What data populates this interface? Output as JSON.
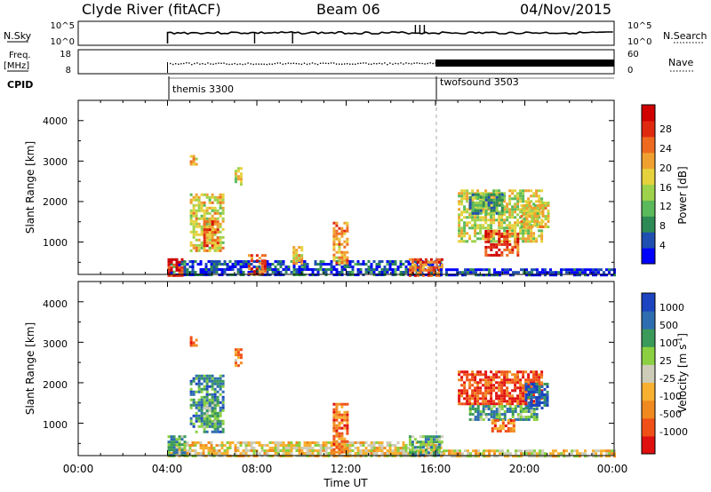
{
  "header": {
    "station": "Clyde River (fitACF)",
    "beam": "Beam 06",
    "date": "04/Nov/2015"
  },
  "top_panels": {
    "nsky_label": "N.Sky",
    "nsky_ticks": [
      "10^5",
      "10^0"
    ],
    "nsearch_label": "N.Search",
    "nsearch_ticks": [
      "10^5",
      "10^0"
    ],
    "freq_label": "Freq.",
    "freq_unit": "[MHz]",
    "freq_ticks": [
      "18",
      "8"
    ],
    "nave_label": "Nave",
    "nave_ticks": [
      "60",
      "0"
    ],
    "cpid_label": "CPID",
    "cpid_modes": [
      {
        "name": "themis 3300",
        "start": "04:00"
      },
      {
        "name": "twofsound 3503",
        "start": "16:00"
      }
    ]
  },
  "chart_data": [
    {
      "type": "heatmap",
      "panel": "power",
      "ylabel": "Slant Range [km]",
      "xlabel": "",
      "x_range_hours": [
        0,
        24
      ],
      "ylim": [
        200,
        4500
      ],
      "yticks": [
        "1000",
        "2000",
        "3000",
        "4000"
      ],
      "colorbar_label": "Power [dB]",
      "colorbar_ticks": [
        "4",
        "8",
        "12",
        "16",
        "20",
        "24",
        "28"
      ],
      "colorbar_colors": [
        "#0000ff",
        "#1f4fb0",
        "#2e8a55",
        "#5ab95a",
        "#9ed24a",
        "#e6d23c",
        "#f0a030",
        "#ee6a20",
        "#e02a10",
        "#d00000"
      ],
      "vline_hour": 16,
      "regions": [
        {
          "x0": 4.0,
          "x1": 16.2,
          "y0": 200,
          "y1": 550,
          "level": 0.15
        },
        {
          "x0": 4.0,
          "x1": 4.6,
          "y0": 200,
          "y1": 600,
          "level": 0.9
        },
        {
          "x0": 7.6,
          "x1": 8.4,
          "y0": 200,
          "y1": 700,
          "level": 0.8
        },
        {
          "x0": 5.0,
          "x1": 6.5,
          "y0": 800,
          "y1": 2200,
          "level": 0.55
        },
        {
          "x0": 5.6,
          "x1": 6.2,
          "y0": 900,
          "y1": 1600,
          "level": 0.75
        },
        {
          "x0": 5.0,
          "x1": 5.3,
          "y0": 2950,
          "y1": 3150,
          "level": 0.6
        },
        {
          "x0": 7.0,
          "x1": 7.3,
          "y0": 2450,
          "y1": 2850,
          "level": 0.5
        },
        {
          "x0": 11.4,
          "x1": 12.0,
          "y0": 500,
          "y1": 1500,
          "level": 0.65
        },
        {
          "x0": 9.6,
          "x1": 10.0,
          "y0": 500,
          "y1": 900,
          "level": 0.6
        },
        {
          "x0": 14.8,
          "x1": 16.3,
          "y0": 200,
          "y1": 600,
          "level": 0.75
        },
        {
          "x0": 17.0,
          "x1": 20.8,
          "y0": 1000,
          "y1": 2300,
          "level": 0.5
        },
        {
          "x0": 17.5,
          "x1": 19.0,
          "y0": 1700,
          "y1": 2200,
          "level": 0.3
        },
        {
          "x0": 18.2,
          "x1": 19.7,
          "y0": 700,
          "y1": 1300,
          "level": 0.85
        },
        {
          "x0": 19.8,
          "x1": 21.0,
          "y0": 1400,
          "y1": 2000,
          "level": 0.55
        },
        {
          "x0": 16.2,
          "x1": 24.0,
          "y0": 200,
          "y1": 350,
          "level": 0.1
        }
      ]
    },
    {
      "type": "heatmap",
      "panel": "velocity",
      "ylabel": "Slant Range [km]",
      "xlabel": "Time UT",
      "x_range_hours": [
        0,
        24
      ],
      "ylim": [
        200,
        4500
      ],
      "yticks": [
        "1000",
        "2000",
        "3000",
        "4000"
      ],
      "xticks": [
        "00:00",
        "04:00",
        "08:00",
        "12:00",
        "16:00",
        "20:00",
        "00:00"
      ],
      "colorbar_label": "Velocity [m s",
      "colorbar_label_exponent": "-1",
      "colorbar_label_close": "]",
      "colorbar_ticks": [
        "-1000",
        "-500",
        "-100",
        "-25",
        "25",
        "100",
        "500",
        "1000"
      ],
      "colorbar_colors": [
        "#e01010",
        "#f05018",
        "#f08a20",
        "#f7b030",
        "#ccccb8",
        "#8ad040",
        "#3a9a5a",
        "#2e6eb0",
        "#1c44c0"
      ],
      "vline_hour": 16,
      "regions": [
        {
          "x0": 4.0,
          "x1": 16.2,
          "y0": 200,
          "y1": 550,
          "level": 0.45
        },
        {
          "x0": 4.0,
          "x1": 4.8,
          "y0": 200,
          "y1": 700,
          "level": 0.7
        },
        {
          "x0": 5.0,
          "x1": 6.5,
          "y0": 800,
          "y1": 2200,
          "level": 0.75
        },
        {
          "x0": 5.6,
          "x1": 6.2,
          "y0": 900,
          "y1": 1600,
          "level": 0.65
        },
        {
          "x0": 5.0,
          "x1": 5.3,
          "y0": 2950,
          "y1": 3150,
          "level": 0.25
        },
        {
          "x0": 7.0,
          "x1": 7.3,
          "y0": 2450,
          "y1": 2850,
          "level": 0.3
        },
        {
          "x0": 11.4,
          "x1": 12.0,
          "y0": 300,
          "y1": 1500,
          "level": 0.25
        },
        {
          "x0": 14.8,
          "x1": 16.3,
          "y0": 200,
          "y1": 700,
          "level": 0.7
        },
        {
          "x0": 17.0,
          "x1": 20.8,
          "y0": 1500,
          "y1": 2300,
          "level": 0.15
        },
        {
          "x0": 17.5,
          "x1": 20.5,
          "y0": 1100,
          "y1": 1450,
          "level": 0.7
        },
        {
          "x0": 18.5,
          "x1": 19.5,
          "y0": 800,
          "y1": 1100,
          "level": 0.25
        },
        {
          "x0": 20.0,
          "x1": 21.0,
          "y0": 1400,
          "y1": 2000,
          "level": 0.88
        },
        {
          "x0": 16.2,
          "x1": 24.0,
          "y0": 200,
          "y1": 350,
          "level": 0.45
        }
      ]
    }
  ]
}
